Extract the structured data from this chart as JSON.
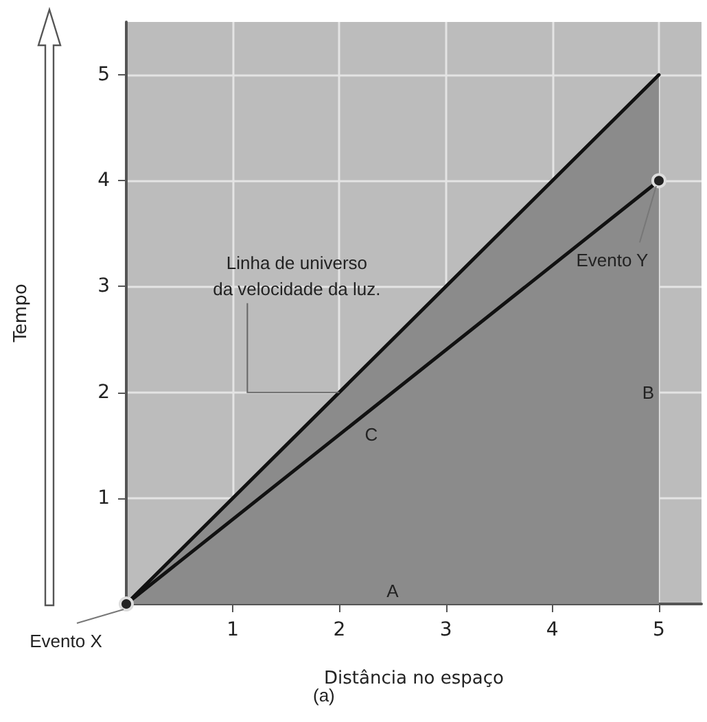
{
  "chart_data": {
    "type": "line",
    "xlabel": "Distância no espaço",
    "ylabel": "Tempo",
    "xlim": [
      0,
      5.4
    ],
    "ylim": [
      0,
      5.5
    ],
    "xticks": [
      1,
      2,
      3,
      4,
      5
    ],
    "yticks": [
      1,
      2,
      3,
      4,
      5
    ],
    "grid": true,
    "line_style": "solid",
    "x": [
      0,
      5
    ],
    "series": [
      {
        "type": "area",
        "color": "#111111",
        "values": [
          0,
          5
        ]
      },
      {
        "type": "line",
        "color": "#111111",
        "values": [
          0,
          4
        ],
        "marker": "circle"
      }
    ],
    "annotations": [
      {
        "text": "Linha de universo\nda velocidade da luz.",
        "x": 2,
        "y": 2
      },
      {
        "text": "Evento X",
        "x": 0,
        "y": 0
      },
      {
        "text": "Evento Y",
        "x": 5,
        "y": 4
      },
      "A",
      "B",
      "C",
      "(a)"
    ]
  }
}
